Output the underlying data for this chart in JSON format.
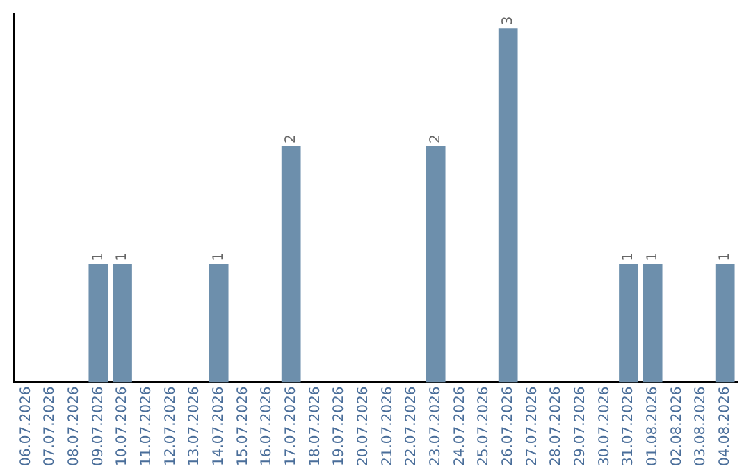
{
  "chart_data": {
    "type": "bar",
    "categories": [
      "06.07.2026",
      "07.07.2026",
      "08.07.2026",
      "09.07.2026",
      "10.07.2026",
      "11.07.2026",
      "12.07.2026",
      "13.07.2026",
      "14.07.2026",
      "15.07.2026",
      "16.07.2026",
      "17.07.2026",
      "18.07.2026",
      "19.07.2026",
      "20.07.2026",
      "21.07.2026",
      "22.07.2026",
      "23.07.2026",
      "24.07.2026",
      "25.07.2026",
      "26.07.2026",
      "27.07.2026",
      "28.07.2026",
      "29.07.2026",
      "30.07.2026",
      "31.07.2026",
      "01.08.2026",
      "02.08.2026",
      "03.08.2026",
      "04.08.2026"
    ],
    "values": [
      0,
      0,
      0,
      1,
      1,
      0,
      0,
      0,
      1,
      0,
      0,
      2,
      0,
      0,
      0,
      0,
      0,
      2,
      0,
      0,
      3,
      0,
      0,
      0,
      0,
      1,
      1,
      0,
      0,
      1
    ],
    "value_labels": [
      null,
      null,
      null,
      "1",
      "1",
      null,
      null,
      null,
      "1",
      null,
      null,
      "2",
      null,
      null,
      null,
      null,
      null,
      "2",
      null,
      null,
      "3",
      null,
      null,
      null,
      null,
      "1",
      "1",
      null,
      null,
      "1"
    ],
    "color": "#6d8fac",
    "ylim": [
      0,
      3.12
    ],
    "tick_labels": "x",
    "grid": false,
    "legend": false
  }
}
